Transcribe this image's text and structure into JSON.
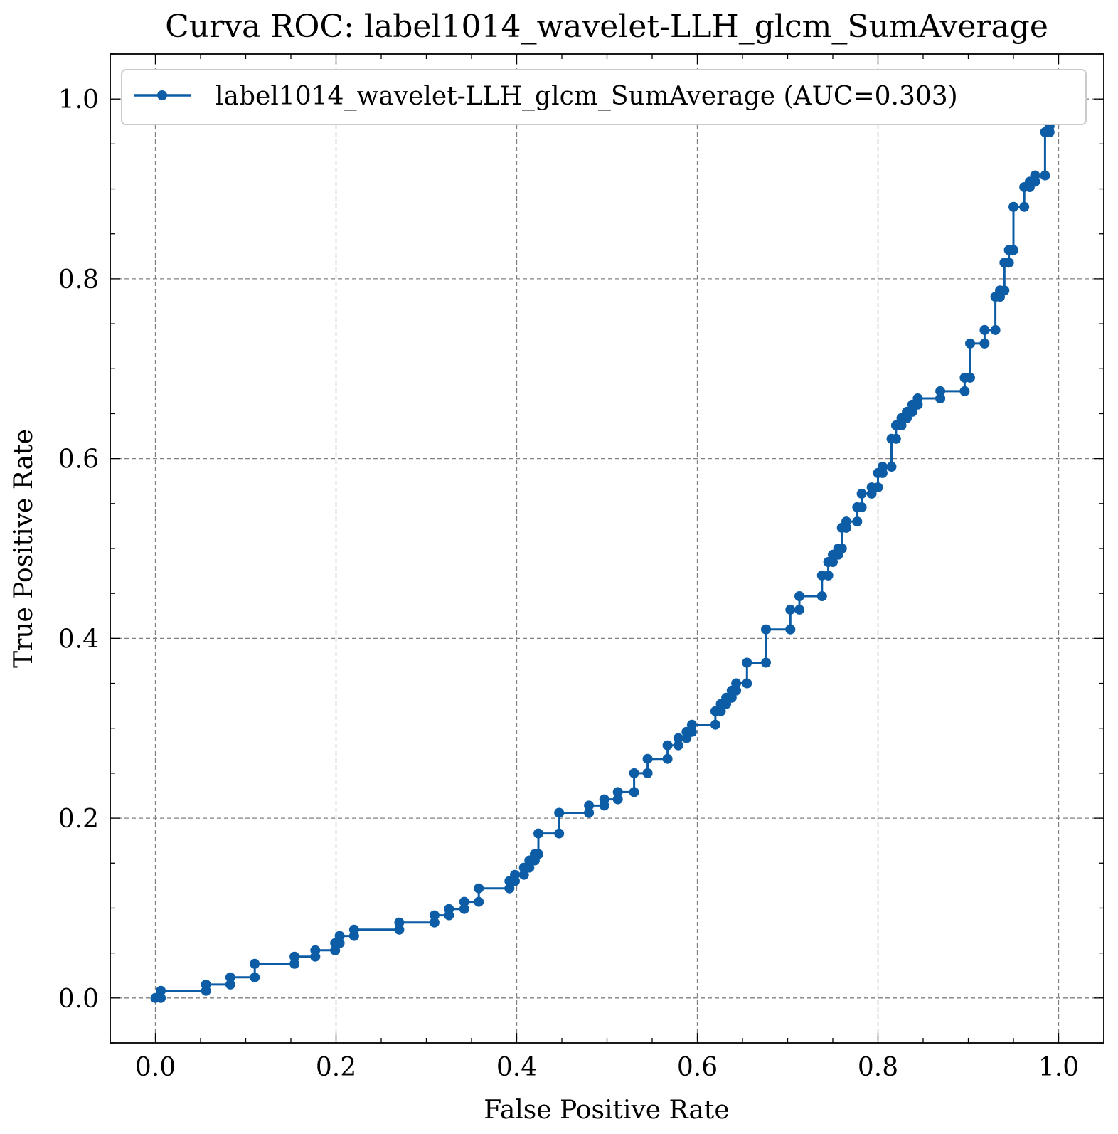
{
  "chart_data": {
    "type": "line",
    "title": "Curva ROC: label1014_wavelet-LLH_glcm_SumAverage",
    "xlabel": "False Positive Rate",
    "ylabel": "True Positive Rate",
    "xlim": [
      -0.05,
      1.05
    ],
    "ylim": [
      -0.05,
      1.05
    ],
    "xticks": [
      "0.0",
      "0.2",
      "0.4",
      "0.6",
      "0.8",
      "1.0"
    ],
    "yticks": [
      "0.0",
      "0.2",
      "0.4",
      "0.6",
      "0.8",
      "1.0"
    ],
    "grid": true,
    "legend_position": "top-left",
    "color": "#0c5da5",
    "series": [
      {
        "name": "label1014_wavelet-LLH_glcm_SumAverage (AUC=0.303)",
        "points": [
          [
            0.0,
            0.0
          ],
          [
            0.006,
            0.0
          ],
          [
            0.006,
            0.008
          ],
          [
            0.056,
            0.008
          ],
          [
            0.056,
            0.015
          ],
          [
            0.083,
            0.015
          ],
          [
            0.083,
            0.023
          ],
          [
            0.11,
            0.023
          ],
          [
            0.11,
            0.038
          ],
          [
            0.154,
            0.038
          ],
          [
            0.154,
            0.046
          ],
          [
            0.177,
            0.046
          ],
          [
            0.177,
            0.053
          ],
          [
            0.199,
            0.053
          ],
          [
            0.199,
            0.061
          ],
          [
            0.204,
            0.061
          ],
          [
            0.204,
            0.069
          ],
          [
            0.22,
            0.069
          ],
          [
            0.22,
            0.076
          ],
          [
            0.27,
            0.076
          ],
          [
            0.27,
            0.084
          ],
          [
            0.309,
            0.084
          ],
          [
            0.309,
            0.092
          ],
          [
            0.325,
            0.092
          ],
          [
            0.325,
            0.099
          ],
          [
            0.342,
            0.099
          ],
          [
            0.342,
            0.107
          ],
          [
            0.358,
            0.107
          ],
          [
            0.358,
            0.122
          ],
          [
            0.392,
            0.122
          ],
          [
            0.392,
            0.13
          ],
          [
            0.398,
            0.13
          ],
          [
            0.398,
            0.137
          ],
          [
            0.408,
            0.137
          ],
          [
            0.408,
            0.145
          ],
          [
            0.414,
            0.145
          ],
          [
            0.414,
            0.153
          ],
          [
            0.42,
            0.153
          ],
          [
            0.42,
            0.16
          ],
          [
            0.424,
            0.16
          ],
          [
            0.424,
            0.183
          ],
          [
            0.447,
            0.183
          ],
          [
            0.447,
            0.206
          ],
          [
            0.48,
            0.206
          ],
          [
            0.48,
            0.214
          ],
          [
            0.497,
            0.214
          ],
          [
            0.497,
            0.221
          ],
          [
            0.512,
            0.221
          ],
          [
            0.512,
            0.229
          ],
          [
            0.53,
            0.229
          ],
          [
            0.53,
            0.25
          ],
          [
            0.545,
            0.25
          ],
          [
            0.545,
            0.266
          ],
          [
            0.567,
            0.266
          ],
          [
            0.567,
            0.281
          ],
          [
            0.579,
            0.281
          ],
          [
            0.579,
            0.289
          ],
          [
            0.588,
            0.289
          ],
          [
            0.588,
            0.296
          ],
          [
            0.594,
            0.296
          ],
          [
            0.594,
            0.304
          ],
          [
            0.62,
            0.304
          ],
          [
            0.62,
            0.319
          ],
          [
            0.626,
            0.319
          ],
          [
            0.626,
            0.327
          ],
          [
            0.632,
            0.327
          ],
          [
            0.632,
            0.334
          ],
          [
            0.638,
            0.334
          ],
          [
            0.638,
            0.342
          ],
          [
            0.643,
            0.342
          ],
          [
            0.643,
            0.35
          ],
          [
            0.655,
            0.35
          ],
          [
            0.655,
            0.373
          ],
          [
            0.676,
            0.373
          ],
          [
            0.676,
            0.41
          ],
          [
            0.703,
            0.41
          ],
          [
            0.703,
            0.432
          ],
          [
            0.713,
            0.432
          ],
          [
            0.713,
            0.447
          ],
          [
            0.738,
            0.447
          ],
          [
            0.738,
            0.47
          ],
          [
            0.745,
            0.47
          ],
          [
            0.745,
            0.485
          ],
          [
            0.75,
            0.485
          ],
          [
            0.75,
            0.493
          ],
          [
            0.756,
            0.493
          ],
          [
            0.756,
            0.5
          ],
          [
            0.76,
            0.5
          ],
          [
            0.76,
            0.523
          ],
          [
            0.765,
            0.523
          ],
          [
            0.765,
            0.53
          ],
          [
            0.777,
            0.53
          ],
          [
            0.777,
            0.546
          ],
          [
            0.782,
            0.546
          ],
          [
            0.782,
            0.561
          ],
          [
            0.793,
            0.561
          ],
          [
            0.793,
            0.568
          ],
          [
            0.8,
            0.568
          ],
          [
            0.8,
            0.584
          ],
          [
            0.805,
            0.584
          ],
          [
            0.805,
            0.591
          ],
          [
            0.815,
            0.591
          ],
          [
            0.815,
            0.622
          ],
          [
            0.82,
            0.622
          ],
          [
            0.82,
            0.637
          ],
          [
            0.826,
            0.637
          ],
          [
            0.826,
            0.645
          ],
          [
            0.832,
            0.645
          ],
          [
            0.832,
            0.652
          ],
          [
            0.838,
            0.652
          ],
          [
            0.838,
            0.66
          ],
          [
            0.844,
            0.66
          ],
          [
            0.844,
            0.667
          ],
          [
            0.869,
            0.667
          ],
          [
            0.869,
            0.675
          ],
          [
            0.896,
            0.675
          ],
          [
            0.896,
            0.69
          ],
          [
            0.902,
            0.69
          ],
          [
            0.902,
            0.728
          ],
          [
            0.918,
            0.728
          ],
          [
            0.918,
            0.743
          ],
          [
            0.93,
            0.743
          ],
          [
            0.93,
            0.78
          ],
          [
            0.935,
            0.78
          ],
          [
            0.935,
            0.787
          ],
          [
            0.94,
            0.787
          ],
          [
            0.94,
            0.818
          ],
          [
            0.945,
            0.818
          ],
          [
            0.945,
            0.832
          ],
          [
            0.95,
            0.832
          ],
          [
            0.95,
            0.88
          ],
          [
            0.962,
            0.88
          ],
          [
            0.962,
            0.902
          ],
          [
            0.968,
            0.902
          ],
          [
            0.968,
            0.908
          ],
          [
            0.974,
            0.908
          ],
          [
            0.974,
            0.915
          ],
          [
            0.985,
            0.915
          ],
          [
            0.985,
            0.963
          ],
          [
            0.99,
            0.963
          ],
          [
            0.99,
            0.97
          ]
        ]
      }
    ]
  }
}
